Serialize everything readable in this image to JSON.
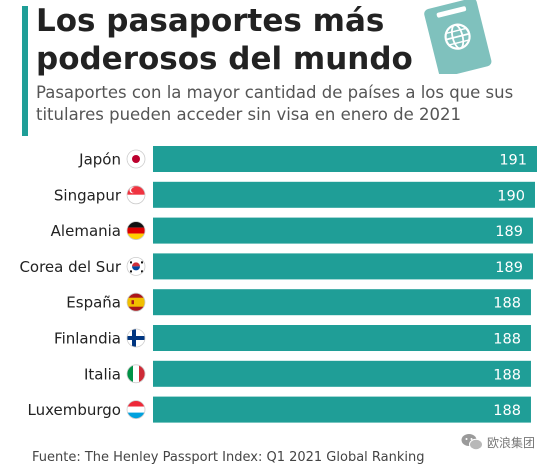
{
  "title": "Los pasaportes más poderosos del mundo",
  "subtitle": "Pasaportes con la mayor cantidad de países a los que sus titulares pueden acceder sin visa en enero de 2021",
  "source": "Fuente: The Henley Passport Index: Q1 2021 Global Ranking",
  "watermark": "欧浪集团",
  "colors": {
    "bar": "#1f9e97",
    "accent": "#1f9e97",
    "bar_label": "#ffffff",
    "text": "#222222"
  },
  "chart_data": {
    "type": "bar",
    "orientation": "horizontal",
    "categories": [
      "Japón",
      "Singapur",
      "Alemania",
      "Corea del Sur",
      "España",
      "Finlandia",
      "Italia",
      "Luxemburgo"
    ],
    "values": [
      191,
      190,
      189,
      189,
      188,
      188,
      188,
      188
    ],
    "flags": [
      "japan-flag",
      "singapore-flag",
      "germany-flag",
      "south-korea-flag",
      "spain-flag",
      "finland-flag",
      "italy-flag",
      "luxembourg-flag"
    ],
    "title": "Los pasaportes más poderosos del mundo",
    "xlabel": "",
    "ylabel": "",
    "data_labels": true,
    "grid": false,
    "legend": "none"
  }
}
